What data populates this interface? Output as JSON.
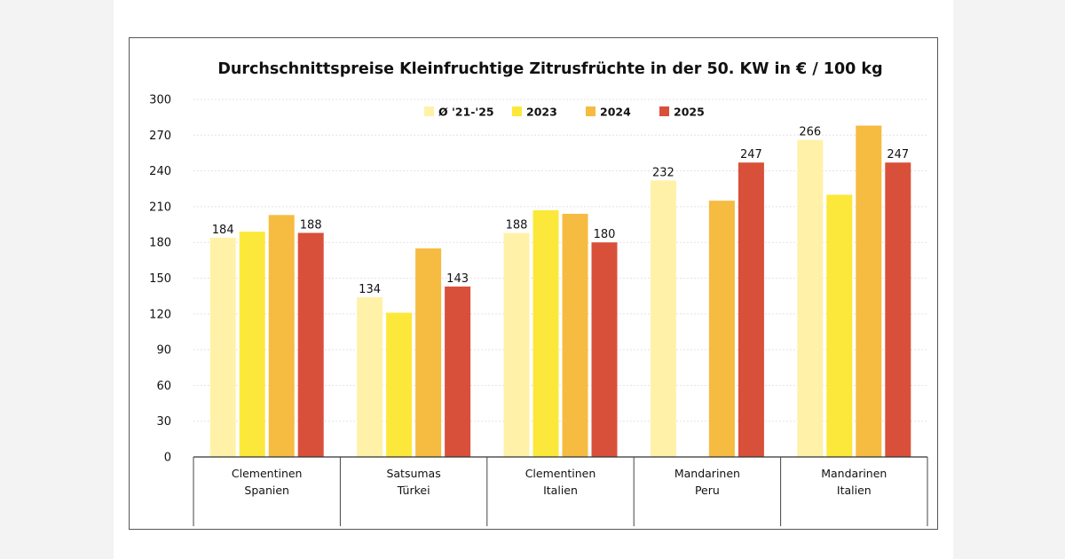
{
  "chart_data": {
    "type": "bar",
    "title": "Durchschnittspreise Kleinfruchtige Zitrusfrüchte in der 50. KW in € / 100 kg",
    "xlabel": "",
    "ylabel": "",
    "ylim": [
      0,
      300
    ],
    "yticks": [
      0,
      30,
      60,
      90,
      120,
      150,
      180,
      210,
      240,
      270,
      300
    ],
    "categories": [
      [
        "Clementinen",
        "Spanien"
      ],
      [
        "Satsumas",
        "Türkei"
      ],
      [
        "Clementinen",
        "Italien"
      ],
      [
        "Mandarinen",
        "Peru"
      ],
      [
        "Mandarinen",
        "Italien"
      ]
    ],
    "series": [
      {
        "name": "Ø '21-'25",
        "color": "#fff2a8",
        "values": [
          184,
          134,
          188,
          232,
          266
        ],
        "labels": [
          "184",
          "134",
          "188",
          "232",
          "266"
        ]
      },
      {
        "name": "2023",
        "color": "#fce83a",
        "values": [
          189,
          121,
          207,
          null,
          220
        ],
        "labels": [
          null,
          null,
          null,
          null,
          null
        ]
      },
      {
        "name": "2024",
        "color": "#f6bb41",
        "values": [
          203,
          175,
          204,
          215,
          278
        ],
        "labels": [
          null,
          null,
          null,
          null,
          null
        ]
      },
      {
        "name": "2025",
        "color": "#d9503a",
        "values": [
          188,
          143,
          180,
          247,
          247
        ],
        "labels": [
          "188",
          "143",
          "180",
          "247",
          "247"
        ]
      }
    ],
    "legend_position": "top-center",
    "grid": true
  }
}
